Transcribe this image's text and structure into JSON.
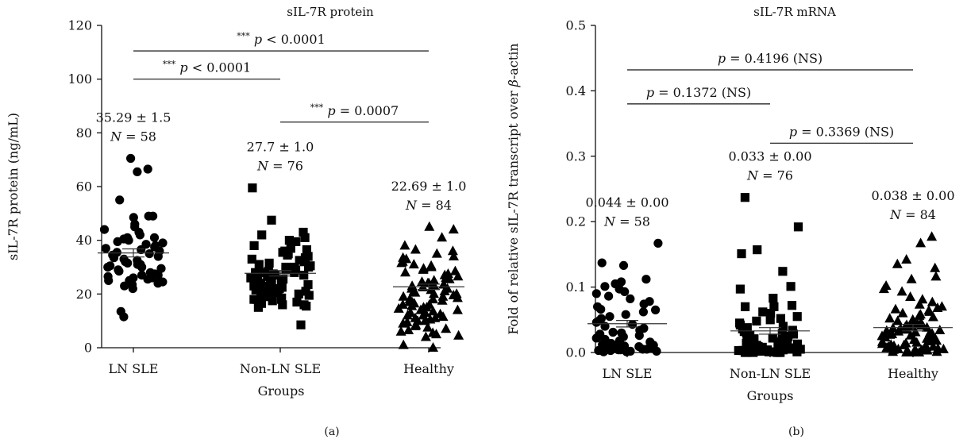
{
  "chart_data": [
    {
      "type": "scatter",
      "panel_label": "(a)",
      "title": "sIL-7R protein",
      "xlabel": "Groups",
      "ylabel": "sIL-7R protein (ng/mL)",
      "ylim": [
        0,
        120
      ],
      "yticks": [
        0,
        20,
        40,
        60,
        80,
        100,
        120
      ],
      "ytick_labels": [
        "0",
        "20",
        "40",
        "60",
        "80",
        "100",
        "120"
      ],
      "categories": [
        "LN SLE",
        "Non-LN SLE",
        "Healthy"
      ],
      "grid": false,
      "legend": "none",
      "series": [
        {
          "marker": "circle",
          "mean": 35.29,
          "sem": 1.5,
          "stat_label": "35.29 ± 1.5",
          "n_label": "N = 58",
          "values": [
            66.5,
            65.5,
            70.5,
            55,
            49,
            49,
            48.5,
            46,
            45,
            44,
            43,
            42,
            41,
            41,
            40.5,
            40,
            39.5,
            39,
            38.5,
            38,
            37.5,
            37,
            36.5,
            36,
            35.5,
            35,
            34.5,
            34,
            33.5,
            33,
            32.5,
            32,
            31.5,
            31,
            30.5,
            30,
            29.5,
            29,
            28.5,
            28,
            27.5,
            27,
            26.5,
            26,
            26,
            25.5,
            25,
            25,
            24.5,
            24,
            23.5,
            23,
            22,
            30,
            27,
            13.5,
            11.5,
            31
          ]
        },
        {
          "marker": "square",
          "mean": 27.7,
          "sem": 1.0,
          "stat_label": "27.7 ± 1.0",
          "n_label": "N = 76",
          "values": [
            59.5,
            47.5,
            43,
            42,
            41,
            40,
            39.5,
            38,
            37,
            36.5,
            36,
            35.5,
            35,
            34.5,
            34,
            33.5,
            33,
            32.5,
            32,
            31.5,
            31,
            30.5,
            30,
            30,
            29.5,
            29,
            29,
            28.5,
            28,
            28,
            27.5,
            27,
            27,
            26.5,
            26,
            26,
            25.5,
            25,
            25,
            24.5,
            24,
            24,
            23.5,
            23,
            23,
            22.5,
            22,
            22,
            21.5,
            21,
            21,
            20.5,
            20,
            20,
            19.5,
            19,
            19,
            18.5,
            18,
            18,
            17.5,
            17,
            17,
            16.5,
            16,
            16,
            15.5,
            15,
            30,
            28,
            26,
            24,
            22,
            20,
            18,
            8.5
          ]
        },
        {
          "marker": "triangle",
          "mean": 22.69,
          "sem": 1.0,
          "stat_label": "22.69 ± 1.0",
          "n_label": "N = 84",
          "values": [
            45,
            44,
            41,
            38,
            36.5,
            36,
            35,
            34,
            33.5,
            33,
            32,
            31.5,
            31,
            30.5,
            30,
            29.5,
            29,
            28.5,
            28,
            27.5,
            27,
            26.5,
            26,
            25.5,
            25,
            24.5,
            24,
            24,
            23.5,
            23,
            23,
            22.5,
            22,
            22,
            21.5,
            21,
            21,
            20.5,
            20,
            20,
            19.5,
            19,
            19,
            18.5,
            18,
            18,
            17.5,
            17,
            17,
            16.5,
            16,
            16,
            15.5,
            15,
            15,
            14.5,
            14,
            14,
            13.5,
            13,
            13,
            12.5,
            12,
            12,
            11.5,
            11,
            11,
            10.5,
            10,
            10,
            9.5,
            9,
            8.5,
            8,
            7.5,
            7,
            6.5,
            6,
            5.5,
            5,
            4.5,
            4,
            1,
            0
          ]
        }
      ],
      "annotations": [
        {
          "from": 0,
          "to": 2,
          "y": 110.5,
          "stars": "***",
          "label": "p < 0.0001"
        },
        {
          "from": 0,
          "to": 1,
          "y": 100,
          "stars": "***",
          "label": "p < 0.0001"
        },
        {
          "from": 1,
          "to": 2,
          "y": 84,
          "stars": "***",
          "label": "p = 0.0007"
        }
      ]
    },
    {
      "type": "scatter",
      "panel_label": "(b)",
      "title": "sIL-7R mRNA",
      "xlabel": "Groups",
      "ylabel": "Fold of relative sIL-7R transcript over β-actin",
      "ylim": [
        0,
        0.5
      ],
      "yticks": [
        0,
        0.1,
        0.2,
        0.3,
        0.4,
        0.5
      ],
      "ytick_labels": [
        "0.0",
        "0.1",
        "0.2",
        "0.3",
        "0.4",
        "0.5"
      ],
      "categories": [
        "LN SLE",
        "Non-LN SLE",
        "Healthy"
      ],
      "grid": false,
      "legend": "none",
      "series": [
        {
          "marker": "circle",
          "mean": 0.044,
          "sem": 0.005,
          "stat_label": "0.044 ± 0.00",
          "n_label": "N = 58",
          "values": [
            0.167,
            0.137,
            0.133,
            0.112,
            0.108,
            0.105,
            0.101,
            0.097,
            0.093,
            0.09,
            0.086,
            0.082,
            0.078,
            0.074,
            0.07,
            0.066,
            0.062,
            0.058,
            0.055,
            0.052,
            0.049,
            0.046,
            0.043,
            0.04,
            0.037,
            0.034,
            0.031,
            0.028,
            0.026,
            0.024,
            0.022,
            0.02,
            0.018,
            0.016,
            0.015,
            0.014,
            0.012,
            0.011,
            0.01,
            0.009,
            0.008,
            0.007,
            0.006,
            0.005,
            0.005,
            0.004,
            0.004,
            0.003,
            0.003,
            0.002,
            0.002,
            0.001,
            0.001,
            0.065,
            0.03,
            0.025,
            0.012,
            0.006
          ]
        },
        {
          "marker": "square",
          "mean": 0.033,
          "sem": 0.005,
          "stat_label": "0.033 ± 0.00",
          "n_label": "N = 76",
          "values": [
            0.237,
            0.192,
            0.157,
            0.151,
            0.124,
            0.101,
            0.097,
            0.083,
            0.072,
            0.07,
            0.07,
            0.062,
            0.06,
            0.055,
            0.052,
            0.05,
            0.048,
            0.045,
            0.042,
            0.04,
            0.038,
            0.036,
            0.034,
            0.032,
            0.03,
            0.029,
            0.028,
            0.026,
            0.025,
            0.024,
            0.022,
            0.021,
            0.02,
            0.019,
            0.018,
            0.017,
            0.016,
            0.015,
            0.014,
            0.013,
            0.012,
            0.011,
            0.01,
            0.01,
            0.009,
            0.009,
            0.008,
            0.008,
            0.007,
            0.007,
            0.006,
            0.006,
            0.005,
            0.005,
            0.005,
            0.004,
            0.004,
            0.004,
            0.003,
            0.003,
            0.003,
            0.002,
            0.002,
            0.002,
            0.002,
            0.001,
            0.001,
            0.001,
            0.001,
            0.001,
            0.0,
            0.0,
            0.0,
            0.0,
            0.0,
            0.0
          ]
        },
        {
          "marker": "triangle",
          "mean": 0.038,
          "sem": 0.005,
          "stat_label": "0.038 ± 0.00",
          "n_label": "N = 84",
          "values": [
            0.177,
            0.167,
            0.142,
            0.135,
            0.129,
            0.116,
            0.112,
            0.102,
            0.097,
            0.093,
            0.085,
            0.081,
            0.077,
            0.073,
            0.07,
            0.068,
            0.066,
            0.064,
            0.062,
            0.06,
            0.058,
            0.056,
            0.054,
            0.052,
            0.05,
            0.048,
            0.046,
            0.045,
            0.044,
            0.042,
            0.041,
            0.04,
            0.039,
            0.038,
            0.037,
            0.036,
            0.035,
            0.034,
            0.033,
            0.032,
            0.031,
            0.03,
            0.029,
            0.028,
            0.027,
            0.026,
            0.025,
            0.024,
            0.023,
            0.022,
            0.021,
            0.02,
            0.019,
            0.018,
            0.017,
            0.016,
            0.015,
            0.014,
            0.013,
            0.012,
            0.011,
            0.01,
            0.01,
            0.009,
            0.009,
            0.008,
            0.008,
            0.007,
            0.007,
            0.006,
            0.006,
            0.005,
            0.005,
            0.004,
            0.004,
            0.003,
            0.003,
            0.002,
            0.002,
            0.001,
            0.001,
            0.0,
            0.0,
            0.0
          ]
        }
      ],
      "annotations": [
        {
          "from": 0,
          "to": 2,
          "y": 0.432,
          "stars": "",
          "label": "p = 0.4196 (NS)"
        },
        {
          "from": 0,
          "to": 1,
          "y": 0.38,
          "stars": "",
          "label": "p = 0.1372 (NS)"
        },
        {
          "from": 1,
          "to": 2,
          "y": 0.32,
          "stars": "",
          "label": "p = 0.3369 (NS)"
        }
      ]
    }
  ]
}
